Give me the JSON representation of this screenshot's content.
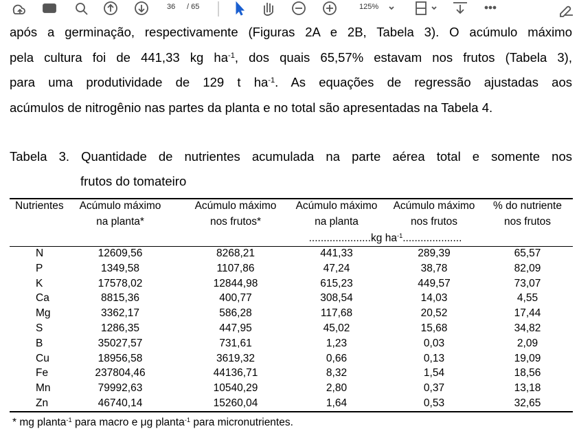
{
  "toolbar": {
    "page": "36",
    "page_count": "/ 65",
    "zoom": "125%"
  },
  "paragraph": {
    "lines": [
      [
        {
          "text": "após a germinação, respectivamente (Figuras 2A e 2B, Tabela 3). O acúmulo máximo"
        }
      ],
      [
        {
          "text": "pela cultura foi de 441,33 kg ha"
        },
        {
          "sup": "-1"
        },
        {
          "text": ", dos quais 65,57% estavam nos frutos (Tabela 3),"
        }
      ],
      [
        {
          "text": "para uma produtividade de 129 t ha"
        },
        {
          "sup": "-1"
        },
        {
          "text": ". As equações de regressão ajustadas aos"
        }
      ],
      [
        {
          "text": "acúmulos de nitrogênio nas partes da planta e no total são apresentadas na Tabela 4."
        }
      ]
    ]
  },
  "table": {
    "caption": [
      "Tabela 3. Quantidade de nutrientes acumulada na parte aérea total e somente nos",
      "frutos do tomateiro"
    ],
    "header": [
      [
        "Nutrientes"
      ],
      [
        "Acúmulo máximo",
        "na planta*"
      ],
      [
        "Acúmulo máximo",
        "nos frutos*"
      ],
      [
        "Acúmulo máximo",
        "na planta"
      ],
      [
        "Acúmulo máximo",
        "nos frutos"
      ],
      [
        "% do nutriente",
        "nos frutos"
      ]
    ],
    "units": [
      {
        "text": ".....................kg ha"
      },
      {
        "sup": "-1"
      },
      {
        "text": "...................."
      }
    ],
    "rows": [
      [
        "N",
        "12609,56",
        "8268,21",
        "441,33",
        "289,39",
        "65,57"
      ],
      [
        "P",
        "1349,58",
        "1107,86",
        "47,24",
        "38,78",
        "82,09"
      ],
      [
        "K",
        "17578,02",
        "12844,98",
        "615,23",
        "449,57",
        "73,07"
      ],
      [
        "Ca",
        "8815,36",
        "400,77",
        "308,54",
        "14,03",
        "4,55"
      ],
      [
        "Mg",
        "3362,17",
        "586,28",
        "117,68",
        "20,52",
        "17,44"
      ],
      [
        "S",
        "1286,35",
        "447,95",
        "45,02",
        "15,68",
        "34,82"
      ],
      [
        "B",
        "35027,57",
        "731,61",
        "1,23",
        "0,03",
        "2,09"
      ],
      [
        "Cu",
        "18956,58",
        "3619,32",
        "0,66",
        "0,13",
        "19,09"
      ],
      [
        "Fe",
        "237804,46",
        "44136,71",
        "8,32",
        "1,54",
        "18,56"
      ],
      [
        "Mn",
        "79992,63",
        "10540,29",
        "2,80",
        "0,37",
        "13,18"
      ],
      [
        "Zn",
        "46740,14",
        "15260,04",
        "1,64",
        "0,53",
        "32,65"
      ]
    ],
    "footnote": [
      {
        "text": "* mg planta"
      },
      {
        "sup": "-1"
      },
      {
        "text": " para macro e μg planta"
      },
      {
        "sup": "-1"
      },
      {
        "text": " para micronutrientes."
      }
    ]
  }
}
